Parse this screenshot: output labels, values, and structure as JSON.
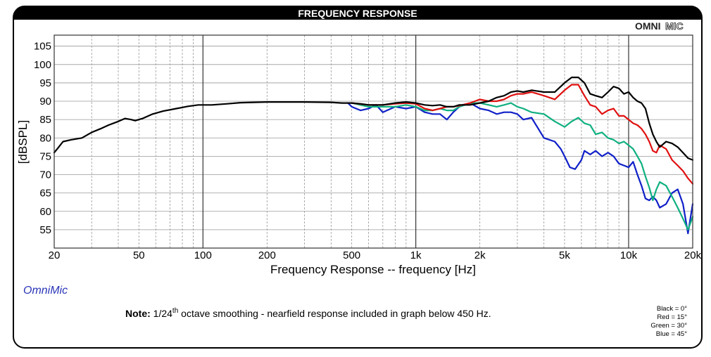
{
  "header": {
    "title": "FREQUENCY RESPONSE"
  },
  "brand": {
    "omni": "OMNI",
    "mic": "MIC",
    "app_name": "OmniMic"
  },
  "note": {
    "bold": "Note:",
    "text1": " 1/24",
    "sup": "th",
    "text2": " octave smoothing - nearfield response included in graph below 450 Hz."
  },
  "legend": [
    {
      "label": "Black = 0°",
      "color": "#000000"
    },
    {
      "label": "Red = 15°",
      "color": "#e01010"
    },
    {
      "label": "Green = 30°",
      "color": "#10b080"
    },
    {
      "label": "Blue = 45°",
      "color": "#1020c8"
    }
  ],
  "chart_data": {
    "type": "line",
    "xscale": "log",
    "xlabel": "Frequency Response -- frequency [Hz]",
    "ylabel": "[dBSPL]",
    "xlim": [
      20,
      20000
    ],
    "ylim": [
      50,
      108
    ],
    "grid": true,
    "x_ticks": [
      {
        "value": 20,
        "label": "20"
      },
      {
        "value": 50,
        "label": "50"
      },
      {
        "value": 100,
        "label": "100"
      },
      {
        "value": 200,
        "label": "200"
      },
      {
        "value": 500,
        "label": "500"
      },
      {
        "value": 1000,
        "label": "1k"
      },
      {
        "value": 2000,
        "label": "2k"
      },
      {
        "value": 5000,
        "label": "5k"
      },
      {
        "value": 10000,
        "label": "10k"
      },
      {
        "value": 20000,
        "label": "20k"
      }
    ],
    "y_ticks": [
      55,
      60,
      65,
      70,
      75,
      80,
      85,
      90,
      95,
      100,
      105
    ],
    "series": [
      {
        "color": "#000000",
        "points": [
          [
            20,
            76
          ],
          [
            21,
            77.5
          ],
          [
            22,
            79
          ],
          [
            24,
            79.5
          ],
          [
            27,
            80
          ],
          [
            30,
            81.5
          ],
          [
            33,
            82.5
          ],
          [
            36,
            83.5
          ],
          [
            40,
            84.5
          ],
          [
            43,
            85.3
          ],
          [
            46,
            85
          ],
          [
            48,
            84.7
          ],
          [
            52,
            85.3
          ],
          [
            58,
            86.5
          ],
          [
            65,
            87.3
          ],
          [
            75,
            88
          ],
          [
            85,
            88.6
          ],
          [
            95,
            89
          ],
          [
            110,
            89
          ],
          [
            130,
            89.3
          ],
          [
            150,
            89.6
          ],
          [
            200,
            89.8
          ],
          [
            300,
            89.8
          ],
          [
            400,
            89.7
          ],
          [
            450,
            89.5
          ],
          [
            500,
            89.5
          ],
          [
            550,
            89.3
          ],
          [
            600,
            89
          ],
          [
            700,
            89
          ],
          [
            800,
            89.5
          ],
          [
            900,
            89.8
          ],
          [
            1000,
            89.5
          ],
          [
            1100,
            89
          ],
          [
            1200,
            88.8
          ],
          [
            1300,
            89
          ],
          [
            1400,
            88.5
          ],
          [
            1500,
            88.5
          ],
          [
            1600,
            89
          ],
          [
            1800,
            89
          ],
          [
            2000,
            89.5
          ],
          [
            2200,
            90
          ],
          [
            2400,
            91
          ],
          [
            2600,
            91.5
          ],
          [
            2800,
            92.5
          ],
          [
            3000,
            92.8
          ],
          [
            3200,
            92.5
          ],
          [
            3500,
            93
          ],
          [
            4000,
            92.5
          ],
          [
            4500,
            92.5
          ],
          [
            5000,
            95
          ],
          [
            5400,
            96.5
          ],
          [
            5800,
            96.5
          ],
          [
            6200,
            95
          ],
          [
            6600,
            92
          ],
          [
            7000,
            91.5
          ],
          [
            7500,
            91
          ],
          [
            8000,
            92.5
          ],
          [
            8500,
            94
          ],
          [
            9000,
            93.5
          ],
          [
            9500,
            92
          ],
          [
            10000,
            92.5
          ],
          [
            10500,
            91
          ],
          [
            11000,
            90
          ],
          [
            11500,
            89.5
          ],
          [
            12000,
            88
          ],
          [
            12500,
            84
          ],
          [
            13000,
            81
          ],
          [
            13500,
            79
          ],
          [
            14000,
            77.5
          ],
          [
            15000,
            79
          ],
          [
            16000,
            78.5
          ],
          [
            17000,
            77.5
          ],
          [
            18000,
            76
          ],
          [
            19000,
            74.5
          ],
          [
            20000,
            74
          ]
        ]
      },
      {
        "color": "#e01010",
        "points": [
          [
            500,
            89.5
          ],
          [
            600,
            89
          ],
          [
            700,
            89
          ],
          [
            800,
            89.3
          ],
          [
            900,
            89.5
          ],
          [
            1000,
            89.3
          ],
          [
            1100,
            88
          ],
          [
            1200,
            87.5
          ],
          [
            1300,
            88
          ],
          [
            1400,
            88.5
          ],
          [
            1500,
            88.5
          ],
          [
            1600,
            88.8
          ],
          [
            1800,
            89.5
          ],
          [
            2000,
            90.5
          ],
          [
            2200,
            90
          ],
          [
            2400,
            90
          ],
          [
            2600,
            90.5
          ],
          [
            2800,
            91.5
          ],
          [
            3000,
            92
          ],
          [
            3200,
            92
          ],
          [
            3500,
            92.5
          ],
          [
            4000,
            91.5
          ],
          [
            4500,
            90.5
          ],
          [
            5000,
            93
          ],
          [
            5400,
            94.5
          ],
          [
            5800,
            94.5
          ],
          [
            6200,
            91.5
          ],
          [
            6600,
            89
          ],
          [
            7000,
            88.5
          ],
          [
            7500,
            86.5
          ],
          [
            8000,
            87.5
          ],
          [
            8500,
            88
          ],
          [
            9000,
            86
          ],
          [
            9500,
            86
          ],
          [
            10000,
            85
          ],
          [
            10500,
            84
          ],
          [
            11000,
            83.5
          ],
          [
            11500,
            82.5
          ],
          [
            12000,
            81
          ],
          [
            12500,
            79
          ],
          [
            13000,
            76.5
          ],
          [
            13500,
            76
          ],
          [
            14000,
            78
          ],
          [
            15000,
            77
          ],
          [
            16000,
            74
          ],
          [
            17000,
            72.5
          ],
          [
            18000,
            71
          ],
          [
            19000,
            69
          ],
          [
            20000,
            67.5
          ]
        ]
      },
      {
        "color": "#10b080",
        "points": [
          [
            500,
            89.5
          ],
          [
            600,
            88.5
          ],
          [
            700,
            88.5
          ],
          [
            800,
            88.5
          ],
          [
            900,
            89
          ],
          [
            1000,
            88.5
          ],
          [
            1100,
            87.5
          ],
          [
            1200,
            87.5
          ],
          [
            1300,
            88
          ],
          [
            1400,
            87.5
          ],
          [
            1500,
            87.5
          ],
          [
            1600,
            88.5
          ],
          [
            1800,
            89.5
          ],
          [
            2000,
            89.5
          ],
          [
            2200,
            89
          ],
          [
            2400,
            88.5
          ],
          [
            2600,
            89
          ],
          [
            2800,
            89.5
          ],
          [
            3000,
            88.5
          ],
          [
            3200,
            88
          ],
          [
            3500,
            87
          ],
          [
            4000,
            86.5
          ],
          [
            4500,
            84.5
          ],
          [
            5000,
            83
          ],
          [
            5400,
            84.5
          ],
          [
            5800,
            85.5
          ],
          [
            6200,
            84
          ],
          [
            6600,
            83.5
          ],
          [
            7000,
            81
          ],
          [
            7500,
            81.5
          ],
          [
            8000,
            80
          ],
          [
            8500,
            79.5
          ],
          [
            9000,
            78.5
          ],
          [
            9500,
            79
          ],
          [
            10000,
            78
          ],
          [
            10500,
            77
          ],
          [
            11000,
            75
          ],
          [
            11500,
            73
          ],
          [
            12000,
            69.5
          ],
          [
            12500,
            66.5
          ],
          [
            13000,
            63
          ],
          [
            13500,
            66
          ],
          [
            14000,
            68
          ],
          [
            15000,
            67
          ],
          [
            16000,
            64
          ],
          [
            17000,
            61
          ],
          [
            18000,
            58
          ],
          [
            19000,
            55
          ],
          [
            20000,
            58.5
          ]
        ]
      },
      {
        "color": "#1020c8",
        "points": [
          [
            480,
            89.5
          ],
          [
            500,
            88.5
          ],
          [
            550,
            87.5
          ],
          [
            600,
            88
          ],
          [
            650,
            89
          ],
          [
            700,
            87
          ],
          [
            800,
            88.5
          ],
          [
            900,
            88
          ],
          [
            1000,
            88.5
          ],
          [
            1100,
            87
          ],
          [
            1200,
            86.5
          ],
          [
            1300,
            86.5
          ],
          [
            1400,
            85
          ],
          [
            1500,
            87
          ],
          [
            1600,
            88.5
          ],
          [
            1800,
            89.5
          ],
          [
            2000,
            88
          ],
          [
            2200,
            87.5
          ],
          [
            2400,
            86.5
          ],
          [
            2600,
            87
          ],
          [
            2800,
            87
          ],
          [
            3000,
            86.5
          ],
          [
            3200,
            85
          ],
          [
            3500,
            85.5
          ],
          [
            4000,
            80
          ],
          [
            4500,
            79
          ],
          [
            4800,
            77
          ],
          [
            5000,
            75
          ],
          [
            5300,
            72
          ],
          [
            5600,
            71.5
          ],
          [
            6000,
            74
          ],
          [
            6200,
            76.5
          ],
          [
            6600,
            75.5
          ],
          [
            7000,
            76.5
          ],
          [
            7500,
            75
          ],
          [
            8000,
            76
          ],
          [
            8500,
            75
          ],
          [
            9000,
            73
          ],
          [
            9500,
            72.5
          ],
          [
            10000,
            72
          ],
          [
            10500,
            73.5
          ],
          [
            11000,
            70
          ],
          [
            11500,
            67
          ],
          [
            12000,
            63.5
          ],
          [
            12500,
            63
          ],
          [
            13000,
            64
          ],
          [
            13500,
            63
          ],
          [
            14000,
            61
          ],
          [
            15000,
            62
          ],
          [
            16000,
            65
          ],
          [
            17000,
            66
          ],
          [
            18000,
            62
          ],
          [
            19000,
            54
          ],
          [
            20000,
            62
          ]
        ]
      }
    ]
  }
}
